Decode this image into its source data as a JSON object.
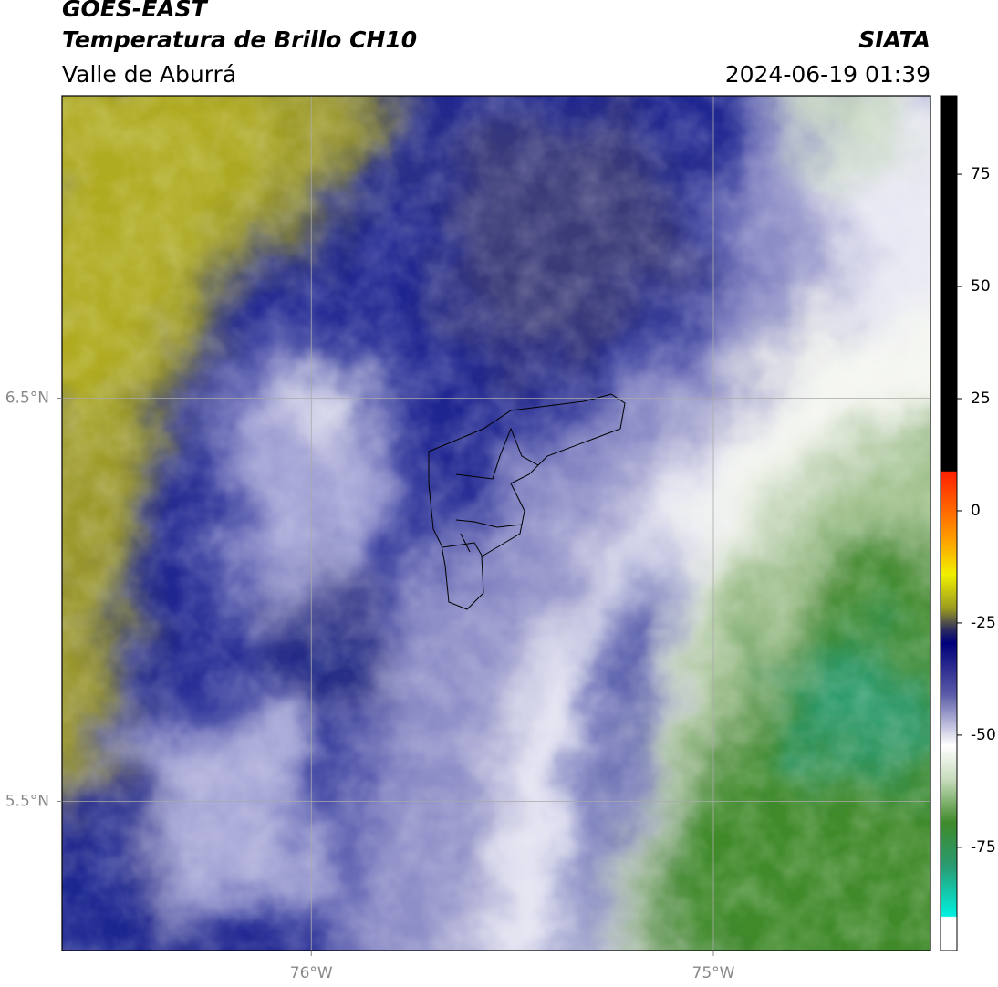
{
  "header": {
    "title": "GOES-EAST",
    "subtitle": "Temperatura de Brillo CH10",
    "region": "Valle de Aburrá",
    "source": "SIATA",
    "datetime": "2024-06-19 01:39"
  },
  "map": {
    "lonlim": [
      -76.62,
      -74.46
    ],
    "latlim": [
      5.13,
      7.25
    ],
    "lat_ticks": [
      {
        "value": 6.5,
        "label": "6.5°N"
      },
      {
        "value": 5.5,
        "label": "5.5°N"
      }
    ],
    "lon_ticks": [
      {
        "value": -76,
        "label": "76°W"
      },
      {
        "value": -75,
        "label": "75°W"
      }
    ]
  },
  "colorbar": {
    "lim": [
      -98,
      92.5
    ],
    "ticks": [
      75,
      50,
      25,
      0,
      -25,
      -50,
      -75
    ]
  }
}
